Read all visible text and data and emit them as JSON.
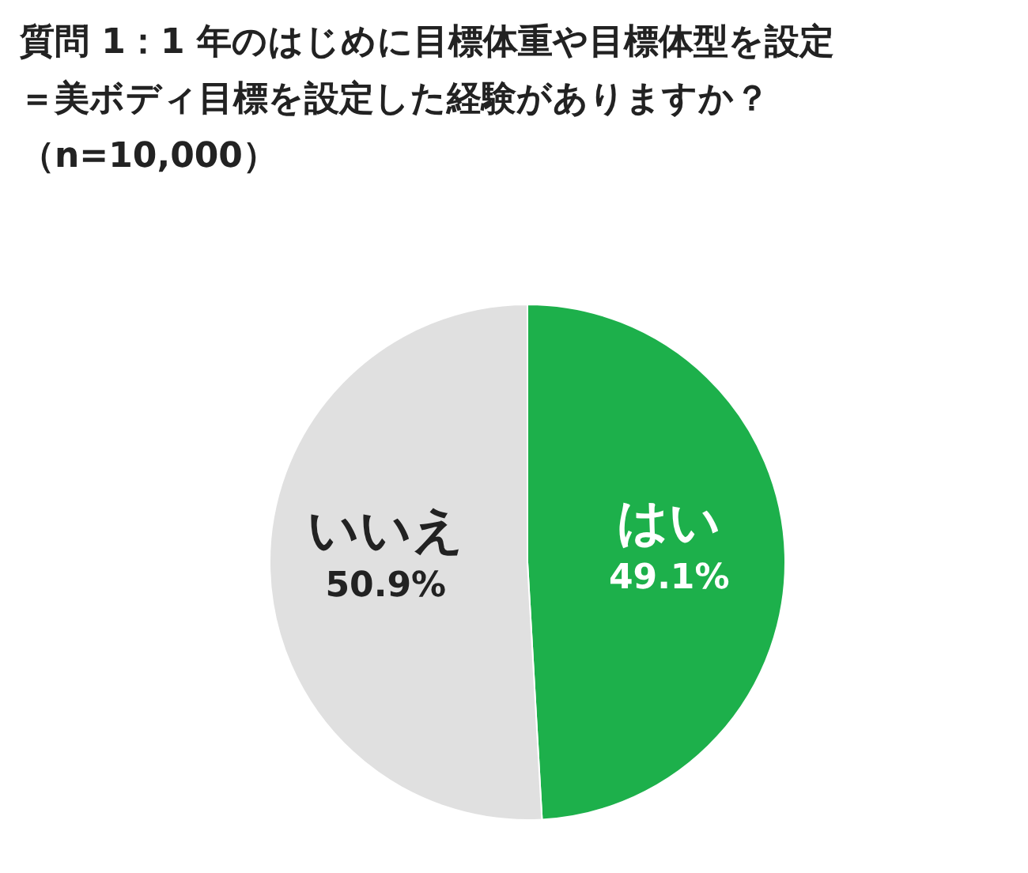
{
  "chart_data": {
    "type": "pie",
    "title": "質問 1：1 年のはじめに目標体重や目標体型を設定＝美ボディ目標を設定した経験がありますか？（n=10,000）",
    "categories": [
      "はい",
      "いいえ"
    ],
    "values": [
      49.1,
      50.9
    ],
    "colors": [
      "#1db04b",
      "#e0e0e0"
    ],
    "value_labels": [
      "49.1%",
      "50.9%"
    ]
  }
}
